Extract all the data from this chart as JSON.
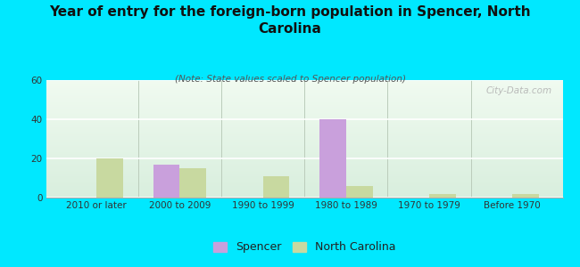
{
  "title": "Year of entry for the foreign-born population in Spencer, North\nCarolina",
  "subtitle": "(Note: State values scaled to Spencer population)",
  "categories": [
    "2010 or later",
    "2000 to 2009",
    "1990 to 1999",
    "1980 to 1989",
    "1970 to 1979",
    "Before 1970"
  ],
  "spencer_values": [
    0,
    17,
    0,
    40,
    0,
    0
  ],
  "nc_values": [
    20,
    15,
    11,
    6,
    2,
    2
  ],
  "spencer_color": "#c9a0dc",
  "nc_color": "#c8d9a0",
  "background_color": "#00e8ff",
  "ylim": [
    0,
    60
  ],
  "yticks": [
    0,
    20,
    40,
    60
  ],
  "bar_width": 0.32,
  "title_fontsize": 11,
  "subtitle_fontsize": 7.5,
  "tick_fontsize": 7.5,
  "legend_fontsize": 9,
  "watermark": "City-Data.com"
}
